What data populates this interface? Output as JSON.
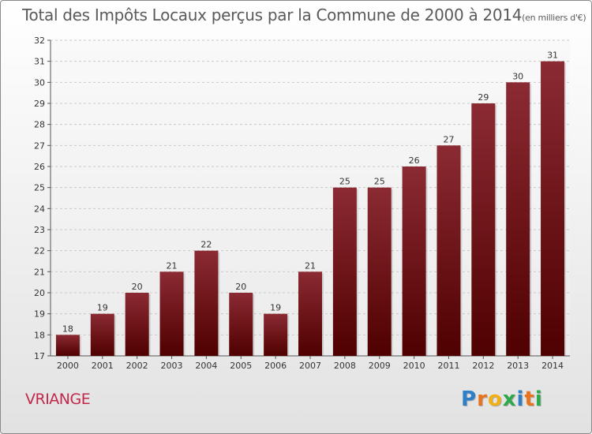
{
  "chart_data": {
    "type": "bar",
    "title": "Total des Impôts Locaux perçus par la Commune de 2000 à 2014",
    "title_unit": "(en milliers d'€)",
    "categories": [
      "2000",
      "2001",
      "2002",
      "2003",
      "2004",
      "2005",
      "2006",
      "2007",
      "2008",
      "2009",
      "2010",
      "2011",
      "2012",
      "2013",
      "2014"
    ],
    "values": [
      18,
      19,
      20,
      21,
      22,
      20,
      19,
      21,
      25,
      25,
      26,
      27,
      29,
      30,
      31
    ],
    "ylim": [
      17,
      32
    ],
    "yticks": [
      17,
      18,
      19,
      20,
      21,
      22,
      23,
      24,
      25,
      26,
      27,
      28,
      29,
      30,
      31,
      32
    ],
    "xlabel": "",
    "ylabel": "",
    "grid": true,
    "bar_color_top": "#8b2a33",
    "bar_color_bottom": "#4f0000"
  },
  "commune": "VRIANGE",
  "logo": {
    "letters": [
      "P",
      "r",
      "o",
      "x",
      "i",
      "t",
      "i"
    ],
    "colors": [
      "#2e7fc7",
      "#e8731c",
      "#f2b015",
      "#2ea84a",
      "#2e7fc7",
      "#e8731c",
      "#2ea84a"
    ]
  }
}
